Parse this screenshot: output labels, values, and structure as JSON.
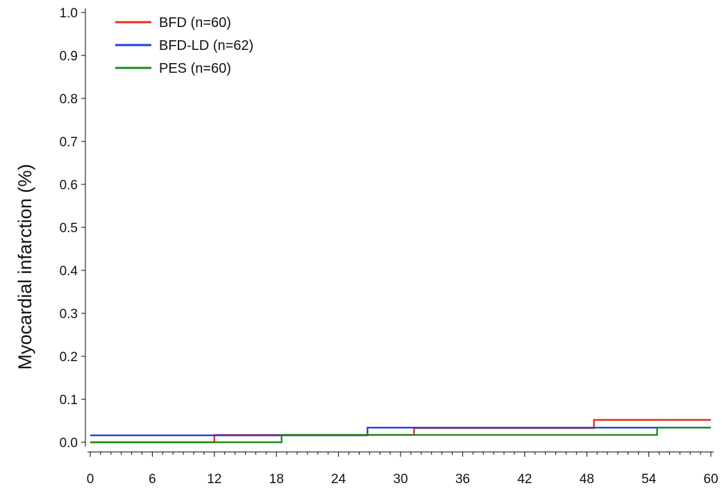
{
  "chart_data": {
    "type": "line",
    "step": true,
    "title": "",
    "xlabel": "",
    "ylabel": "Myocardial infarction (%)",
    "xlim": [
      0,
      60
    ],
    "ylim": [
      0,
      1.0
    ],
    "x_ticks": [
      "0",
      "6",
      "12",
      "18",
      "24",
      "30",
      "36",
      "42",
      "48",
      "54",
      "60"
    ],
    "x_tick_values": [
      0,
      6,
      12,
      18,
      24,
      30,
      36,
      42,
      48,
      54,
      60
    ],
    "y_ticks": [
      "0.0",
      "0.1",
      "0.2",
      "0.3",
      "0.4",
      "0.5",
      "0.6",
      "0.7",
      "0.8",
      "0.9",
      "1.0"
    ],
    "y_tick_values": [
      0,
      0.1,
      0.2,
      0.3,
      0.4,
      0.5,
      0.6,
      0.7,
      0.8,
      0.9,
      1.0
    ],
    "grid": false,
    "legend_position": "top-left",
    "series": [
      {
        "name": "BFD (n=60)",
        "color": "#e8301f",
        "x": [
          0,
          12,
          31.3,
          48.7,
          60
        ],
        "y": [
          0,
          0.017,
          0.033,
          0.052,
          0.052
        ]
      },
      {
        "name": "BFD-LD (n=62)",
        "color": "#1f3fe0",
        "x": [
          0,
          26.8,
          60
        ],
        "y": [
          0.016,
          0.034,
          0.034
        ]
      },
      {
        "name": "PES (n=60)",
        "color": "#1e8a1e",
        "x": [
          0,
          18.5,
          54.8,
          60
        ],
        "y": [
          0,
          0.017,
          0.034,
          0.034
        ]
      }
    ]
  }
}
